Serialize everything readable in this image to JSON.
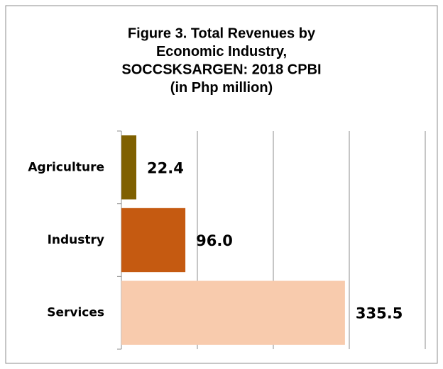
{
  "chart_data": {
    "type": "bar",
    "orientation": "horizontal",
    "title": [
      "Figure 3. Total Revenues by",
      "Economic Industry,",
      "SOCCSKSARGEN: 2018 CPBI",
      "(in Php million)"
    ],
    "categories": [
      "Agriculture",
      "Industry",
      "Services"
    ],
    "values": [
      22.4,
      96,
      335.5
    ],
    "value_labels": [
      "22.4",
      "96.0",
      "335.5"
    ],
    "colors": [
      "#7f6000",
      "#c55a11",
      "#f8cbad"
    ],
    "xlim": [
      0,
      456
    ],
    "xticks": [
      114,
      228,
      342,
      456
    ],
    "grid": true
  }
}
